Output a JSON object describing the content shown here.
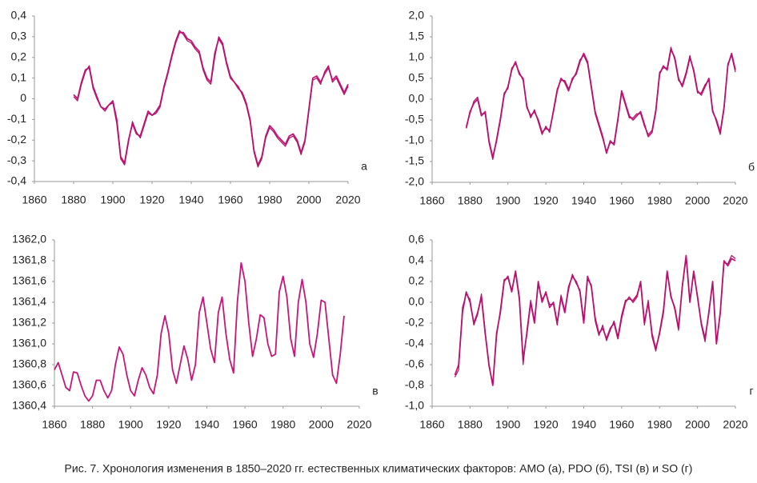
{
  "chart_data": [
    {
      "type": "line",
      "annotation": "а",
      "x": [
        1880,
        1882,
        1884,
        1886,
        1888,
        1890,
        1892,
        1894,
        1896,
        1898,
        1900,
        1902,
        1904,
        1906,
        1908,
        1910,
        1912,
        1914,
        1916,
        1918,
        1920,
        1922,
        1924,
        1926,
        1928,
        1930,
        1932,
        1934,
        1936,
        1938,
        1940,
        1942,
        1944,
        1946,
        1948,
        1950,
        1952,
        1954,
        1956,
        1958,
        1960,
        1962,
        1964,
        1966,
        1968,
        1970,
        1972,
        1974,
        1976,
        1978,
        1980,
        1982,
        1984,
        1986,
        1988,
        1990,
        1992,
        1994,
        1996,
        1998,
        2000,
        2002,
        2004,
        2006,
        2008,
        2010,
        2012,
        2014,
        2016,
        2018,
        2020
      ],
      "series": [
        {
          "color": "#c2187a",
          "values": [
            0.02,
            0,
            0.08,
            0.14,
            0.15,
            0.05,
            0,
            -0.04,
            -0.05,
            -0.03,
            -0.01,
            -0.1,
            -0.28,
            -0.31,
            -0.2,
            -0.12,
            -0.17,
            -0.18,
            -0.12,
            -0.06,
            -0.08,
            -0.07,
            -0.04,
            0.05,
            0.12,
            0.2,
            0.27,
            0.32,
            0.32,
            0.29,
            0.28,
            0.25,
            0.23,
            0.15,
            0.1,
            0.08,
            0.22,
            0.29,
            0.26,
            0.17,
            0.1,
            0.08,
            0.05,
            0.03,
            -0.02,
            -0.1,
            -0.25,
            -0.32,
            -0.28,
            -0.18,
            -0.13,
            -0.15,
            -0.18,
            -0.2,
            -0.22,
            -0.18,
            -0.17,
            -0.2,
            -0.26,
            -0.2,
            -0.05,
            0.1,
            0.11,
            0.08,
            0.12,
            0.15,
            0.09,
            0.11,
            0.07,
            0.03,
            0.07
          ]
        },
        {
          "color": "#b01068",
          "values": [
            0.01,
            -0.01,
            0.07,
            0.13,
            0.16,
            0.06,
            0.01,
            -0.04,
            -0.06,
            -0.03,
            -0.02,
            -0.12,
            -0.29,
            -0.32,
            -0.21,
            -0.11,
            -0.16,
            -0.19,
            -0.13,
            -0.07,
            -0.08,
            -0.06,
            -0.03,
            0.06,
            0.13,
            0.21,
            0.28,
            0.33,
            0.31,
            0.28,
            0.27,
            0.24,
            0.22,
            0.14,
            0.09,
            0.07,
            0.2,
            0.3,
            0.27,
            0.18,
            0.11,
            0.08,
            0.06,
            0.02,
            -0.03,
            -0.11,
            -0.26,
            -0.33,
            -0.29,
            -0.19,
            -0.14,
            -0.16,
            -0.19,
            -0.21,
            -0.23,
            -0.19,
            -0.18,
            -0.21,
            -0.27,
            -0.21,
            -0.06,
            0.09,
            0.1,
            0.07,
            0.13,
            0.16,
            0.08,
            0.1,
            0.06,
            0.02,
            0.06
          ]
        }
      ],
      "xlim": [
        1860,
        2020
      ],
      "xticks": [
        1860,
        1880,
        1900,
        1920,
        1940,
        1960,
        1980,
        2000,
        2020
      ],
      "ylim": [
        -0.4,
        0.4
      ],
      "yticks": [
        {
          "value": 0.4,
          "label": "0,4"
        },
        {
          "value": 0.3,
          "label": "0,3"
        },
        {
          "value": 0.2,
          "label": "0,2"
        },
        {
          "value": 0.1,
          "label": "0,1"
        },
        0,
        {
          "value": -0.1,
          "label": "-0,1"
        },
        {
          "value": -0.2,
          "label": "-0,2"
        },
        {
          "value": -0.3,
          "label": "-0,3"
        },
        {
          "value": -0.4,
          "label": "-0,4"
        }
      ]
    },
    {
      "type": "line",
      "annotation": "б",
      "x": [
        1878,
        1880,
        1882,
        1884,
        1886,
        1888,
        1890,
        1892,
        1894,
        1896,
        1898,
        1900,
        1902,
        1904,
        1906,
        1908,
        1910,
        1912,
        1914,
        1916,
        1918,
        1920,
        1922,
        1924,
        1926,
        1928,
        1930,
        1932,
        1934,
        1936,
        1938,
        1940,
        1942,
        1944,
        1946,
        1948,
        1950,
        1952,
        1954,
        1956,
        1958,
        1960,
        1962,
        1964,
        1966,
        1968,
        1970,
        1972,
        1974,
        1976,
        1978,
        1980,
        1982,
        1984,
        1986,
        1988,
        1990,
        1992,
        1994,
        1996,
        1998,
        2000,
        2002,
        2004,
        2006,
        2008,
        2010,
        2012,
        2014,
        2016,
        2018,
        2020
      ],
      "series": [
        {
          "color": "#c2187a",
          "values": [
            -0.7,
            -0.3,
            -0.1,
            0.0,
            -0.4,
            -0.3,
            -1.0,
            -1.4,
            -1.0,
            -0.5,
            0.1,
            0.3,
            0.7,
            0.9,
            0.6,
            0.5,
            -0.2,
            -0.4,
            -0.3,
            -0.5,
            -0.8,
            -0.7,
            -0.75,
            -0.3,
            0.2,
            0.5,
            0.4,
            0.2,
            0.5,
            0.6,
            0.9,
            1.1,
            0.9,
            0.3,
            -0.3,
            -0.6,
            -0.9,
            -1.3,
            -1.0,
            -1.1,
            -0.5,
            0.2,
            -0.1,
            -0.4,
            -0.5,
            -0.4,
            -0.3,
            -0.6,
            -0.9,
            -0.8,
            -0.3,
            0.6,
            0.8,
            0.7,
            1.2,
            1.0,
            0.5,
            0.3,
            0.6,
            1.0,
            0.7,
            0.2,
            0.1,
            0.3,
            0.5,
            -0.3,
            -0.5,
            -0.8,
            -0.2,
            0.8,
            1.1,
            0.7
          ]
        },
        {
          "color": "#b01068",
          "values": [
            -0.65,
            -0.35,
            -0.05,
            0.05,
            -0.35,
            -0.35,
            -1.05,
            -1.45,
            -0.95,
            -0.45,
            0.15,
            0.25,
            0.75,
            0.85,
            0.65,
            0.45,
            -0.15,
            -0.45,
            -0.25,
            -0.55,
            -0.85,
            -0.65,
            -0.8,
            -0.25,
            0.25,
            0.45,
            0.45,
            0.25,
            0.45,
            0.65,
            0.95,
            1.05,
            0.85,
            0.25,
            -0.35,
            -0.65,
            -0.95,
            -1.25,
            -1.05,
            -1.05,
            -0.45,
            0.15,
            -0.15,
            -0.45,
            -0.45,
            -0.35,
            -0.35,
            -0.65,
            -0.85,
            -0.75,
            -0.25,
            0.65,
            0.75,
            0.75,
            1.25,
            0.95,
            0.45,
            0.35,
            0.65,
            1.05,
            0.65,
            0.15,
            0.15,
            0.35,
            0.45,
            -0.25,
            -0.55,
            -0.85,
            -0.25,
            0.85,
            1.05,
            0.65
          ]
        }
      ],
      "xlim": [
        1860,
        2020
      ],
      "xticks": [
        1860,
        1880,
        1900,
        1920,
        1940,
        1960,
        1980,
        2000,
        2020
      ],
      "ylim": [
        -2.0,
        2.0
      ],
      "yticks": [
        {
          "value": 2.0,
          "label": "2,0"
        },
        {
          "value": 1.5,
          "label": "1,5"
        },
        {
          "value": 1.0,
          "label": "1,0"
        },
        {
          "value": 0.5,
          "label": "0,5"
        },
        {
          "value": 0.0,
          "label": "0,0"
        },
        {
          "value": -0.5,
          "label": "-0,5"
        },
        {
          "value": -1.0,
          "label": "-1,0"
        },
        {
          "value": -1.5,
          "label": "-1,5"
        },
        {
          "value": -2.0,
          "label": "-2,0"
        }
      ]
    },
    {
      "type": "line",
      "annotation": "в",
      "x": [
        1860,
        1862,
        1864,
        1866,
        1868,
        1870,
        1872,
        1874,
        1876,
        1878,
        1880,
        1882,
        1884,
        1886,
        1888,
        1890,
        1892,
        1894,
        1896,
        1898,
        1900,
        1902,
        1904,
        1906,
        1908,
        1910,
        1912,
        1914,
        1916,
        1918,
        1920,
        1922,
        1924,
        1926,
        1928,
        1930,
        1932,
        1934,
        1936,
        1938,
        1940,
        1942,
        1944,
        1946,
        1948,
        1950,
        1952,
        1954,
        1956,
        1958,
        1960,
        1962,
        1964,
        1966,
        1968,
        1970,
        1972,
        1974,
        1976,
        1978,
        1980,
        1982,
        1984,
        1986,
        1988,
        1990,
        1992,
        1994,
        1996,
        1998,
        2000,
        2002,
        2004,
        2006,
        2008,
        2010,
        2012
      ],
      "series": [
        {
          "color": "#c2187a",
          "values": [
            1360.75,
            1360.82,
            1360.7,
            1360.58,
            1360.55,
            1360.73,
            1360.72,
            1360.6,
            1360.5,
            1360.45,
            1360.5,
            1360.65,
            1360.65,
            1360.55,
            1360.48,
            1360.55,
            1360.8,
            1360.97,
            1360.9,
            1360.7,
            1360.55,
            1360.5,
            1360.65,
            1360.77,
            1360.7,
            1360.58,
            1360.52,
            1360.7,
            1361.1,
            1361.27,
            1361.1,
            1360.75,
            1360.62,
            1360.8,
            1360.98,
            1360.85,
            1360.65,
            1360.8,
            1361.3,
            1361.45,
            1361.2,
            1360.95,
            1360.82,
            1361.3,
            1361.45,
            1361.1,
            1360.85,
            1360.72,
            1361.4,
            1361.78,
            1361.6,
            1361.2,
            1360.88,
            1361.05,
            1361.28,
            1361.25,
            1361.0,
            1360.88,
            1360.9,
            1361.5,
            1361.65,
            1361.45,
            1361.05,
            1360.88,
            1361.4,
            1361.62,
            1361.4,
            1361.0,
            1360.87,
            1361.1,
            1361.42,
            1361.4,
            1361.05,
            1360.7,
            1360.62,
            1360.9,
            1361.27
          ]
        }
      ],
      "xlim": [
        1860,
        2020
      ],
      "xticks": [
        1860,
        1880,
        1900,
        1920,
        1940,
        1960,
        1980,
        2000,
        2020
      ],
      "ylim": [
        1360.4,
        1362.0
      ],
      "yticks": [
        {
          "value": 1362.0,
          "label": "1362,0"
        },
        {
          "value": 1361.8,
          "label": "1361,8"
        },
        {
          "value": 1361.6,
          "label": "1361,6"
        },
        {
          "value": 1361.4,
          "label": "1361,4"
        },
        {
          "value": 1361.2,
          "label": "1361,2"
        },
        {
          "value": 1361.0,
          "label": "1361,0"
        },
        {
          "value": 1360.8,
          "label": "1360,8"
        },
        {
          "value": 1360.6,
          "label": "1360,6"
        },
        {
          "value": 1360.4,
          "label": "1360,4"
        }
      ]
    },
    {
      "type": "line",
      "annotation": "г",
      "x": [
        1872,
        1874,
        1876,
        1878,
        1880,
        1882,
        1884,
        1886,
        1888,
        1890,
        1892,
        1894,
        1896,
        1898,
        1900,
        1902,
        1904,
        1906,
        1908,
        1910,
        1912,
        1914,
        1916,
        1918,
        1920,
        1922,
        1924,
        1926,
        1928,
        1930,
        1932,
        1934,
        1936,
        1938,
        1940,
        1942,
        1944,
        1946,
        1948,
        1950,
        1952,
        1954,
        1956,
        1958,
        1960,
        1962,
        1964,
        1966,
        1968,
        1970,
        1972,
        1974,
        1976,
        1978,
        1980,
        1982,
        1984,
        1986,
        1988,
        1990,
        1992,
        1994,
        1996,
        1998,
        2000,
        2002,
        2004,
        2006,
        2008,
        2010,
        2012,
        2014,
        2016,
        2018,
        2020
      ],
      "series": [
        {
          "color": "#c2187a",
          "values": [
            -0.7,
            -0.6,
            -0.1,
            0.1,
            0.0,
            -0.2,
            -0.1,
            0.05,
            -0.3,
            -0.6,
            -0.8,
            -0.3,
            -0.1,
            0.2,
            0.25,
            0.1,
            0.3,
            0.05,
            -0.55,
            -0.3,
            0.0,
            -0.2,
            0.2,
            0.0,
            0.1,
            -0.05,
            0.0,
            -0.2,
            0.05,
            -0.1,
            0.15,
            0.25,
            0.2,
            0.1,
            -0.2,
            0.25,
            0.15,
            -0.15,
            -0.3,
            -0.25,
            -0.35,
            -0.25,
            -0.2,
            -0.35,
            -0.15,
            0.0,
            0.05,
            0.0,
            0.05,
            0.2,
            -0.2,
            0.0,
            -0.3,
            -0.45,
            -0.3,
            -0.1,
            0.3,
            0.05,
            -0.05,
            -0.25,
            0.15,
            0.45,
            0.0,
            0.3,
            0.05,
            -0.2,
            -0.35,
            -0.1,
            0.2,
            -0.4,
            -0.1,
            0.4,
            0.35,
            0.42,
            0.4
          ]
        },
        {
          "color": "#b01068",
          "values": [
            -0.72,
            -0.65,
            -0.05,
            0.08,
            0.03,
            -0.22,
            -0.12,
            0.08,
            -0.28,
            -0.62,
            -0.78,
            -0.33,
            -0.07,
            0.22,
            0.23,
            0.12,
            0.28,
            0.02,
            -0.6,
            -0.27,
            0.02,
            -0.18,
            0.17,
            0.03,
            0.08,
            -0.02,
            -0.02,
            -0.22,
            0.07,
            -0.08,
            0.12,
            0.27,
            0.18,
            0.12,
            -0.17,
            0.22,
            0.17,
            -0.18,
            -0.32,
            -0.22,
            -0.37,
            -0.27,
            -0.18,
            -0.33,
            -0.12,
            0.02,
            0.03,
            0.02,
            0.07,
            0.18,
            -0.22,
            0.02,
            -0.33,
            -0.47,
            -0.28,
            -0.07,
            0.28,
            0.07,
            -0.07,
            -0.27,
            0.17,
            0.42,
            0.02,
            0.27,
            0.07,
            -0.22,
            -0.38,
            -0.08,
            0.18,
            -0.38,
            -0.12,
            0.38,
            0.37,
            0.45,
            0.42
          ]
        }
      ],
      "xlim": [
        1860,
        2020
      ],
      "xticks": [
        1860,
        1880,
        1900,
        1920,
        1940,
        1960,
        1980,
        2000,
        2020
      ],
      "ylim": [
        -1.0,
        0.6
      ],
      "yticks": [
        {
          "value": 0.6,
          "label": "0,6"
        },
        {
          "value": 0.4,
          "label": "0,4"
        },
        {
          "value": 0.2,
          "label": "0,2"
        },
        {
          "value": 0.0,
          "label": "0,0"
        },
        {
          "value": -0.2,
          "label": "-0,2"
        },
        {
          "value": -0.4,
          "label": "-0,4"
        },
        {
          "value": -0.6,
          "label": "-0,6"
        },
        {
          "value": -0.8,
          "label": "-0,8"
        },
        {
          "value": -1.0,
          "label": "-1,0"
        }
      ]
    }
  ],
  "caption": "Рис. 7. Хронология изменения в 1850–2020 гг. естественных климатических факторов: AMO (а), PDO (б), TSI (в) и SO (г)"
}
